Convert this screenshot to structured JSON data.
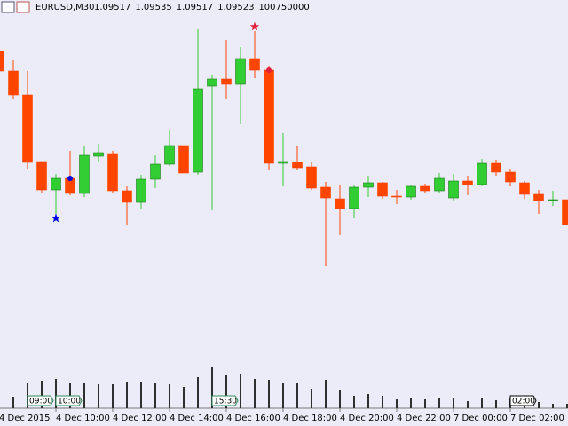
{
  "header": {
    "symbol": "EURUSD,M30",
    "values": [
      1.09517,
      1.09535,
      1.09517,
      1.09523,
      100750000
    ]
  },
  "chart_data": {
    "type": "candlestick",
    "categories": [
      "4 Dec 2015",
      null,
      null,
      null,
      "4 Dec 10:00",
      null,
      null,
      null,
      "4 Dec 12:00",
      null,
      null,
      null,
      "4 Dec 14:00",
      null,
      null,
      null,
      "4 Dec 16:00",
      null,
      null,
      null,
      "4 Dec 18:00",
      null,
      null,
      null,
      "4 Dec 20:00",
      null,
      null,
      null,
      "4 Dec 22:00",
      null,
      null,
      null,
      "7 Dec 00:00",
      null,
      null,
      null,
      "7 Dec 02:00",
      null,
      null,
      null,
      null
    ],
    "open": [
      1.09914,
      1.0987,
      1.09816,
      1.09666,
      1.09602,
      1.09628,
      1.09594,
      1.09678,
      1.09684,
      1.096,
      1.09574,
      1.09626,
      1.0966,
      1.09702,
      1.09642,
      1.09836,
      1.09852,
      1.0984,
      1.09898,
      1.09872,
      1.09662,
      1.09664,
      1.09654,
      1.09608,
      1.09582,
      1.0956,
      1.09608,
      1.09618,
      1.09588,
      1.09586,
      1.0961,
      1.096,
      1.09584,
      1.09622,
      1.09614,
      1.09662,
      1.09642,
      1.09618,
      1.09592,
      1.09578,
      1.0958
    ],
    "high": [
      1.09914,
      1.09894,
      1.0987,
      1.09666,
      1.09638,
      1.0969,
      1.097,
      1.09706,
      1.0969,
      1.0961,
      1.09636,
      1.0968,
      1.09736,
      1.09702,
      1.09964,
      1.09862,
      1.0994,
      1.09924,
      1.0996,
      1.09882,
      1.0973,
      1.09702,
      1.09664,
      1.0962,
      1.09612,
      1.09614,
      1.09634,
      1.0962,
      1.09602,
      1.09614,
      1.09616,
      1.0964,
      1.09638,
      1.09634,
      1.09672,
      1.0967,
      1.0965,
      1.09622,
      1.09602,
      1.096,
      1.0958
    ],
    "low": [
      1.0987,
      1.09806,
      1.0965,
      1.09594,
      1.09538,
      1.0959,
      1.09586,
      1.09666,
      1.09594,
      1.09522,
      1.09558,
      1.09606,
      1.09656,
      1.0964,
      1.09636,
      1.09556,
      1.09806,
      1.0975,
      1.09854,
      1.09646,
      1.0961,
      1.09646,
      1.09602,
      1.0943,
      1.095,
      1.09538,
      1.09586,
      1.09582,
      1.0957,
      1.0958,
      1.09594,
      1.09594,
      1.09576,
      1.0959,
      1.0961,
      1.09634,
      1.0961,
      1.09582,
      1.09548,
      1.09566,
      1.09524
    ],
    "close": [
      1.0987,
      1.09816,
      1.09664,
      1.09602,
      1.09628,
      1.09594,
      1.0968,
      1.09686,
      1.096,
      1.09574,
      1.09626,
      1.0966,
      1.09702,
      1.0964,
      1.0983,
      1.09852,
      1.0984,
      1.09898,
      1.09872,
      1.09662,
      1.09666,
      1.09652,
      1.09606,
      1.09584,
      1.0956,
      1.09608,
      1.09618,
      1.09588,
      1.09586,
      1.0961,
      1.096,
      1.09628,
      1.09622,
      1.09614,
      1.09662,
      1.09642,
      1.0962,
      1.09592,
      1.09578,
      1.0958,
      1.09524
    ],
    "volume": [
      null,
      13,
      28,
      31,
      33,
      28,
      29,
      27,
      27,
      30,
      30,
      28,
      27,
      24,
      35,
      46,
      37,
      39,
      33,
      32,
      29,
      28,
      22,
      32,
      20,
      14,
      16,
      14,
      10,
      12,
      10,
      12,
      11,
      8,
      12,
      9,
      11,
      9,
      7,
      5,
      5
    ],
    "ylim": [
      1.0911,
      1.1003
    ],
    "vlim": [
      0,
      50
    ],
    "up_color": "#32cd32",
    "down_color": "#ff4500",
    "volume_color": "#2f2f2f",
    "markers": [
      {
        "index": 4,
        "shape": "star",
        "color": "#0000e0",
        "value": 1.09538
      },
      {
        "index": 5,
        "shape": "dot",
        "color": "#0000e0",
        "value": 1.09628
      },
      {
        "index": 18,
        "shape": "star",
        "color": "#e0203c",
        "value": 1.0997
      },
      {
        "index": 19,
        "shape": "dot",
        "color": "#e0203c",
        "value": 1.09872
      }
    ],
    "tags": [
      {
        "index": 2,
        "label": "09:00",
        "color": "#2e8b57"
      },
      {
        "index": 4,
        "label": "10:00",
        "color": "#2e8b57"
      },
      {
        "index": 15,
        "label": "15:30",
        "color": "#2e8b57"
      },
      {
        "index": 36,
        "label": "02:00",
        "color": "#000000"
      }
    ]
  }
}
